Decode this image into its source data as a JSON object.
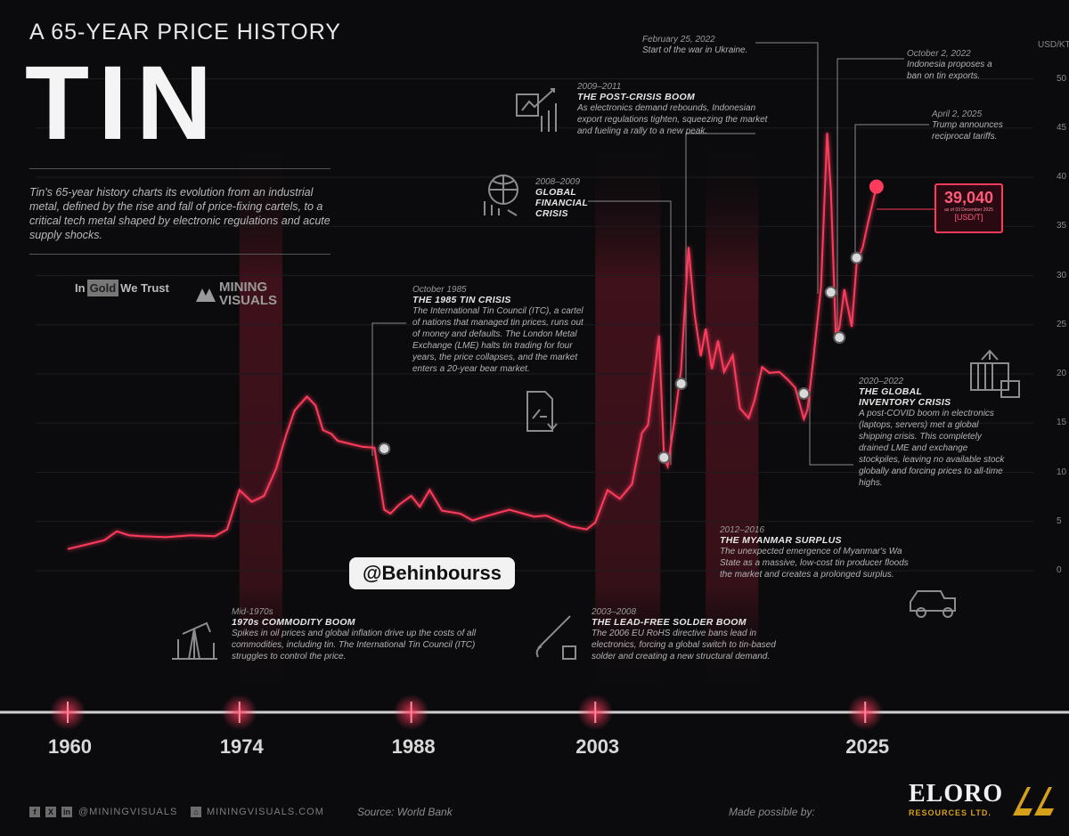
{
  "header": {
    "subtitle": "A 65-YEAR PRICE HISTORY",
    "title": "TIN",
    "intro": "Tin's 65-year history charts its evolution from an industrial metal, defined by the rise and fall of price-fixing cartels, to a critical tech metal shaped by electronic regulations and acute supply shocks."
  },
  "logos": {
    "in_gold_pre": "In",
    "in_gold_mid": "Gold",
    "in_gold_post": "We Trust",
    "mining_visuals_1": "MINING",
    "mining_visuals_2": "VISUALS"
  },
  "price_box": {
    "value": "39,040",
    "asof": "as of 03 December 2025",
    "unit": "[USD/T]"
  },
  "annotations": {
    "boom1970": {
      "date": "Mid-1970s",
      "head": "1970s COMMODITY BOOM",
      "body": "Spikes in oil prices and global inflation drive up the costs of all commodities, including tin. The International Tin Council (ITC) struggles to control the price."
    },
    "crisis1985": {
      "date": "October 1985",
      "head": "THE 1985 TIN CRISIS",
      "body": "The International Tin Council (ITC), a cartel of nations that managed tin prices, runs out of money and defaults. The London Metal Exchange (LME) halts tin trading for four years, the price collapses, and the market enters a 20-year bear market."
    },
    "solder": {
      "date": "2003–2008",
      "head": "THE LEAD-FREE SOLDER BOOM",
      "body": "The 2006 EU RoHS directive bans lead in electronics, forcing a global switch to tin-based solder and creating a new structural demand."
    },
    "gfc": {
      "date": "2008–2009",
      "head1": "GLOBAL",
      "head2": "FINANCIAL",
      "head3": "CRISIS"
    },
    "postcrisis": {
      "date": "2009–2011",
      "head": "THE POST-CRISIS BOOM",
      "body": "As electronics demand rebounds, Indonesian export regulations tighten, squeezing the market and fueling a rally to a new peak."
    },
    "myanmar": {
      "date": "2012–2016",
      "head": "THE MYANMAR SURPLUS",
      "body": "The unexpected emergence of Myanmar's Wa State as a massive, low-cost tin producer floods the market and creates a prolonged surplus."
    },
    "ukraine": {
      "date": "February 25, 2022",
      "body": "Start of the war in Ukraine."
    },
    "indonesia": {
      "date": "October 2, 2022",
      "body": "Indonesia proposes a ban on tin exports."
    },
    "tariffs": {
      "date": "April 2, 2025",
      "body": "Trump announces reciprocal tariffs."
    },
    "inventory": {
      "date": "2020–2022",
      "head1": "THE GLOBAL",
      "head2": "INVENTORY CRISIS",
      "body": "A post-COVID boom in electronics (laptops, servers) met a global shipping crisis. This completely drained LME and exchange stockpiles, leaving no available stock globally and forcing prices to all-time highs."
    }
  },
  "watermark": "@Behinbourss",
  "footer": {
    "handle": "@MININGVISUALS",
    "site": "MININGVISUALS.COM",
    "source": "Source: World Bank",
    "made_by": "Made possible by:",
    "sponsor": "ELORO",
    "sponsor_sub": "RESOURCES LTD."
  },
  "colors": {
    "line": "#ff3b5c",
    "band": "#7a1a2c",
    "background": "#0b0b0d",
    "sponsor_gold": "#d7a01b"
  },
  "chart_data": {
    "type": "line",
    "title": "TIN",
    "subtitle": "A 65-YEAR PRICE HISTORY",
    "ylabel": "USD/KT",
    "ylim": [
      0,
      50
    ],
    "yticks": [
      0,
      5,
      10,
      15,
      20,
      25,
      30,
      35,
      40,
      45,
      50
    ],
    "xlim": [
      1960,
      2026
    ],
    "xticks": [
      1960,
      1974,
      1988,
      2003,
      2025
    ],
    "series": [
      {
        "x": [
          1960,
          1962,
          1963,
          1964,
          1965,
          1966,
          1968,
          1970,
          1972,
          1973,
          1974,
          1975,
          1976,
          1977,
          1977.8,
          1978.5,
          1979.5,
          1980.2,
          1980.8,
          1981.5,
          1982,
          1983,
          1984,
          1985,
          1985.8,
          1986.3,
          1987,
          1988,
          1988.7,
          1989.5,
          1990.5,
          1992,
          1993,
          1994,
          1996,
          1998,
          1999,
          2001,
          2002.3,
          2003,
          2004,
          2005,
          2006,
          2006.8,
          2007.3,
          2008.2,
          2008.6,
          2008.9,
          2009.4,
          2010,
          2010.6,
          2011.1,
          2011.6,
          2012,
          2012.5,
          2013,
          2013.5,
          2014.2,
          2014.8,
          2015.5,
          2016,
          2016.6,
          2017.2,
          2018,
          2018.7,
          2019.3,
          2020,
          2020.3,
          2020.8,
          2021.4,
          2021.9,
          2022.2,
          2022.6,
          2022.9,
          2023.3,
          2023.9,
          2024.3,
          2024.8,
          2025.2,
          2025.92
        ],
        "y": [
          2.2,
          2.8,
          3.1,
          4.0,
          3.6,
          3.5,
          3.4,
          3.6,
          3.5,
          4.2,
          8.2,
          7.0,
          7.6,
          10.4,
          13.8,
          16.3,
          17.7,
          16.8,
          14.3,
          13.9,
          13.2,
          12.9,
          12.6,
          12.5,
          6.2,
          5.8,
          6.7,
          7.6,
          6.5,
          8.2,
          6.1,
          5.8,
          5.1,
          5.5,
          6.2,
          5.5,
          5.6,
          4.5,
          4.2,
          4.9,
          8.2,
          7.3,
          8.8,
          14.0,
          14.8,
          23.9,
          11.5,
          10.6,
          14.8,
          20.5,
          32.9,
          26.0,
          21.8,
          24.6,
          20.5,
          23.4,
          20.2,
          21.9,
          16.5,
          15.5,
          17.4,
          20.7,
          20.1,
          20.2,
          19.4,
          18.6,
          15.4,
          16.4,
          21.8,
          28.8,
          44.5,
          38.7,
          23.9,
          24.7,
          28.6,
          24.8,
          31.2,
          32.9,
          35.2,
          39.04
        ]
      }
    ],
    "markers": [
      {
        "x": 1985.8,
        "y": 12.4
      },
      {
        "x": 2008.6,
        "y": 11.5
      },
      {
        "x": 2010.0,
        "y": 19.0
      },
      {
        "x": 2020.0,
        "y": 18.0
      },
      {
        "x": 2022.2,
        "y": 28.3
      },
      {
        "x": 2022.9,
        "y": 23.7
      },
      {
        "x": 2024.3,
        "y": 31.8
      }
    ],
    "current": {
      "x": 2025.92,
      "y": 39.04,
      "label": "39,040"
    },
    "highlight_bands": [
      [
        1974,
        1977.5
      ],
      [
        2003,
        2008.3
      ],
      [
        2012,
        2016.3
      ]
    ],
    "annotations": [
      "1970s COMMODITY BOOM",
      "THE 1985 TIN CRISIS",
      "THE LEAD-FREE SOLDER BOOM",
      "GLOBAL FINANCIAL CRISIS",
      "THE POST-CRISIS BOOM",
      "THE MYANMAR SURPLUS",
      "THE GLOBAL INVENTORY CRISIS"
    ]
  }
}
